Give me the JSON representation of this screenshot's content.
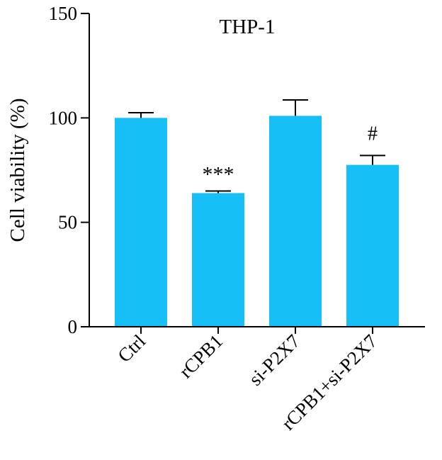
{
  "chart_data": {
    "type": "bar",
    "title": "THP-1",
    "xlabel": "",
    "ylabel": "Cell viability (%)",
    "ylim": [
      0,
      150
    ],
    "yticks": [
      0,
      50,
      100,
      150
    ],
    "categories": [
      "Ctrl",
      "rCPB1",
      "si-P2X7",
      "rCPB1+si-P2X7"
    ],
    "values": [
      100,
      64,
      101,
      77.5
    ],
    "error_upper": [
      102.5,
      65,
      108.6,
      82
    ],
    "annotations": [
      "",
      "***",
      "",
      "#"
    ],
    "grid": false,
    "bar_color": "#16BFF5"
  }
}
